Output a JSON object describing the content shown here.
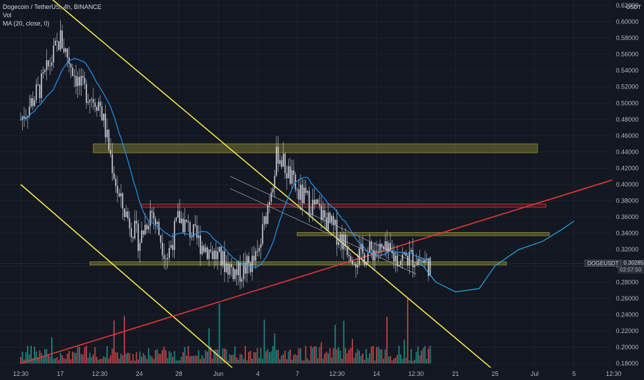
{
  "header": {
    "title": "Dogecoin / TetherUS, 4h, BINANCE",
    "vol_label": "Vol",
    "ma_label": "MA (20, close, 0)"
  },
  "price_axis": {
    "currency": "USDT",
    "ticks": [
      "0.62000",
      "0.60000",
      "0.58000",
      "0.56000",
      "0.54000",
      "0.52000",
      "0.50000",
      "0.48000",
      "0.46000",
      "0.44000",
      "0.42000",
      "0.40000",
      "0.38000",
      "0.36000",
      "0.34000",
      "0.32000",
      "0.30000",
      "0.28000",
      "0.26000",
      "0.24000",
      "0.22000",
      "0.20000",
      "0.18000"
    ]
  },
  "time_axis": {
    "labels": [
      "12:30",
      "17",
      "12:30",
      "24",
      "28",
      "Jun",
      "4",
      "7",
      "12:30",
      "14",
      "12:30",
      "21",
      "25",
      "Jul",
      "5",
      "12:30"
    ]
  },
  "price_tag": {
    "symbol": "DOGEUSDT",
    "price": "0.30285",
    "countdown": "02:07:50"
  },
  "colors": {
    "background": "#131722",
    "up": "#26a69a",
    "down": "#ef5350",
    "candle_body": "#d1d4dc",
    "ma": "#2196f3",
    "trend_channel": "#f0e84a",
    "support_trendline": "#e53935",
    "zone_fill": "#6b6b2a",
    "resistance_zone": "#e53935",
    "projection": "#29b6f6"
  },
  "chart_data": {
    "type": "candlestick",
    "symbol": "DOGEUSDT",
    "interval": "4h",
    "exchange": "BINANCE",
    "ylim": [
      0.175,
      0.625
    ],
    "current_price": 0.30285,
    "price_path": {
      "note_x_units": "time-axis position from 12:30 (0) to 12:30 (15)",
      "x": [
        0,
        0.5,
        1.0,
        1.5,
        2.0,
        2.5,
        3.0,
        3.3,
        3.7,
        4.0,
        4.5,
        5.0,
        5.5,
        6.0,
        6.5,
        7.0,
        7.5,
        8.0,
        8.5,
        9.0,
        9.5,
        10.0,
        10.4
      ],
      "close": [
        0.48,
        0.52,
        0.58,
        0.52,
        0.5,
        0.38,
        0.33,
        0.37,
        0.31,
        0.36,
        0.33,
        0.31,
        0.29,
        0.31,
        0.44,
        0.39,
        0.37,
        0.34,
        0.31,
        0.32,
        0.31,
        0.31,
        0.3
      ]
    },
    "ma_period": 20,
    "horizontal_zones": [
      {
        "low": 0.439,
        "high": 0.45,
        "kind": "supply"
      },
      {
        "low": 0.372,
        "high": 0.376,
        "kind": "resistance"
      },
      {
        "low": 0.337,
        "high": 0.341,
        "kind": "zone"
      },
      {
        "low": 0.301,
        "high": 0.305,
        "kind": "support"
      }
    ],
    "trendlines": [
      {
        "kind": "channel-upper",
        "from": [
          0.0,
          0.66
        ],
        "to": [
          12.5,
          0.15
        ]
      },
      {
        "kind": "channel-lower",
        "from": [
          0.0,
          0.4
        ],
        "to": [
          5.7,
          0.16
        ]
      },
      {
        "kind": "rising-support",
        "from": [
          0.0,
          0.18
        ],
        "to": [
          15.0,
          0.406
        ]
      }
    ],
    "projection": {
      "x": [
        10.1,
        10.5,
        11.0,
        11.6,
        12.0,
        12.6,
        13.2,
        13.7,
        14.0
      ],
      "y": [
        0.305,
        0.28,
        0.268,
        0.272,
        0.3,
        0.32,
        0.33,
        0.345,
        0.355
      ]
    },
    "volume_scale": [
      0,
      1
    ]
  }
}
